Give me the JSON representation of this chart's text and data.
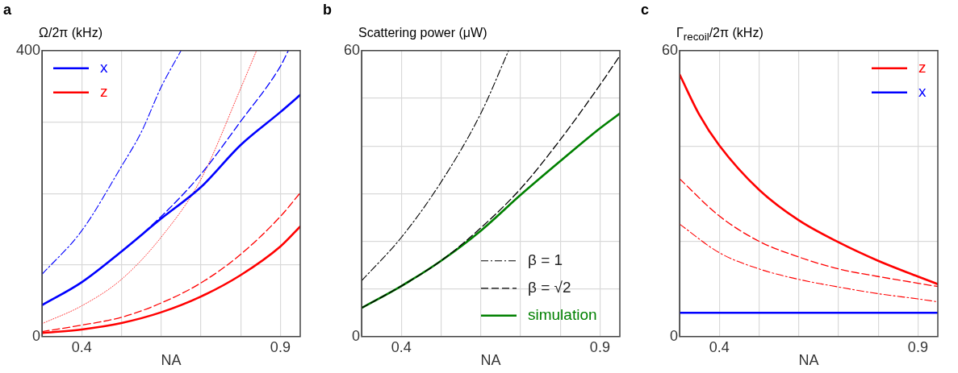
{
  "chart_data": [
    {
      "type": "line",
      "title": "a",
      "ylabel": "Ω/2π (kHz)",
      "xlabel": "NA",
      "xlim": [
        0.3,
        0.95
      ],
      "ylim": [
        0,
        400
      ],
      "xticks": [
        {
          "value": 0.4,
          "label": "0.4"
        },
        {
          "value": 0.5,
          "label": null
        },
        {
          "value": 0.6,
          "label": null
        },
        {
          "value": 0.7,
          "label": null
        },
        {
          "value": 0.8,
          "label": null
        },
        {
          "value": 0.9,
          "label": "0.9"
        }
      ],
      "yticks": [
        0,
        {
          "value": 100,
          "label": null
        },
        {
          "value": 200,
          "label": null
        },
        {
          "value": 300,
          "label": null
        },
        400
      ],
      "grid": true,
      "legend": "top left",
      "series": [
        {
          "name": "x",
          "color": "#0000ff",
          "line_style": "solid",
          "x": [
            0.3,
            0.4,
            0.5,
            0.6,
            0.7,
            0.8,
            0.9,
            0.95
          ],
          "values": [
            44,
            76,
            119,
            165,
            209,
            268,
            314,
            338
          ]
        },
        {
          "name": "z",
          "color": "#ff0000",
          "line_style": "solid",
          "x": [
            0.3,
            0.4,
            0.5,
            0.6,
            0.7,
            0.8,
            0.9,
            0.95
          ],
          "values": [
            5,
            10,
            19,
            34,
            56,
            86,
            126,
            154
          ]
        },
        {
          "color": "#0000ff",
          "line_style": "dashed",
          "x": [
            0.3,
            0.4,
            0.5,
            0.6,
            0.7,
            0.8,
            0.9,
            0.92
          ],
          "values": [
            44,
            76,
            119,
            168,
            227,
            301,
            378,
            400
          ]
        },
        {
          "color": "#0000ff",
          "line_style": "dashdot",
          "x": [
            0.3,
            0.4,
            0.5,
            0.55,
            0.6,
            0.65
          ],
          "values": [
            87,
            148,
            238,
            286,
            349,
            400
          ]
        },
        {
          "color": "#ff0000",
          "line_style": "dashed",
          "x": [
            0.3,
            0.4,
            0.5,
            0.6,
            0.7,
            0.8,
            0.9,
            0.95
          ],
          "values": [
            7,
            16,
            27,
            47,
            75,
            115,
            168,
            201
          ]
        },
        {
          "color": "#ff0000",
          "line_style": "dotted",
          "x": [
            0.3,
            0.4,
            0.5,
            0.6,
            0.7,
            0.8,
            0.84
          ],
          "values": [
            18,
            43,
            80,
            139,
            220,
            347,
            400
          ]
        }
      ]
    },
    {
      "type": "line",
      "title": "b",
      "ylabel": "Scattering power (μW)",
      "xlabel": "NA",
      "xlim": [
        0.3,
        0.95
      ],
      "ylim": [
        0,
        60
      ],
      "xticks": [
        {
          "value": 0.4,
          "label": "0.4"
        },
        {
          "value": 0.5,
          "label": null
        },
        {
          "value": 0.6,
          "label": null
        },
        {
          "value": 0.7,
          "label": null
        },
        {
          "value": 0.8,
          "label": null
        },
        {
          "value": 0.9,
          "label": "0.9"
        }
      ],
      "yticks": [
        0,
        {
          "value": 10,
          "label": null
        },
        {
          "value": 20,
          "label": null
        },
        {
          "value": 30,
          "label": null
        },
        {
          "value": 40,
          "label": null
        },
        {
          "value": 50,
          "label": null
        },
        60
      ],
      "grid": true,
      "legend": "bottom right",
      "series": [
        {
          "name": "β = 1",
          "color": "#000000",
          "line_style": "dashdot",
          "x": [
            0.3,
            0.4,
            0.5,
            0.6,
            0.67
          ],
          "values": [
            11.7,
            20.8,
            32.4,
            46.8,
            60
          ]
        },
        {
          "name": "β = √2",
          "color": "#000000",
          "line_style": "dashed",
          "x": [
            0.3,
            0.4,
            0.5,
            0.6,
            0.7,
            0.8,
            0.9,
            0.95
          ],
          "values": [
            6.0,
            10.6,
            15.9,
            22.8,
            31.0,
            41.3,
            52.8,
            58.9
          ]
        },
        {
          "name": "simulation",
          "color": "#008000",
          "line_style": "solid",
          "x": [
            0.3,
            0.4,
            0.5,
            0.6,
            0.7,
            0.8,
            0.9,
            0.95
          ],
          "values": [
            6.0,
            10.6,
            15.9,
            22.2,
            29.7,
            36.8,
            43.7,
            46.8
          ]
        }
      ]
    },
    {
      "type": "line",
      "title": "c",
      "ylabel": "Γ$_{recoil}$/2π (kHz)",
      "xlabel": "NA",
      "xlim": [
        0.3,
        0.95
      ],
      "ylim": [
        0,
        60
      ],
      "xticks": [
        {
          "value": 0.4,
          "label": "0.4"
        },
        {
          "value": 0.5,
          "label": null
        },
        {
          "value": 0.6,
          "label": null
        },
        {
          "value": 0.7,
          "label": null
        },
        {
          "value": 0.8,
          "label": null
        },
        {
          "value": 0.9,
          "label": "0.9"
        }
      ],
      "yticks": [
        0,
        {
          "value": 20,
          "label": null
        },
        {
          "value": 40,
          "label": null
        },
        60
      ],
      "grid": true,
      "legend": "top right",
      "series": [
        {
          "name": "z",
          "color": "#ff0000",
          "line_style": "solid",
          "x": [
            0.3,
            0.35,
            0.4,
            0.5,
            0.6,
            0.7,
            0.8,
            0.9,
            0.95
          ],
          "values": [
            55.0,
            46.5,
            40.1,
            30.8,
            24.4,
            19.8,
            15.9,
            12.6,
            11.0
          ]
        },
        {
          "name": "x",
          "color": "#0000ff",
          "line_style": "solid",
          "x": [
            0.3,
            0.95
          ],
          "values": [
            5.0,
            5.0
          ]
        },
        {
          "color": "#ff0000",
          "line_style": "dashed",
          "x": [
            0.3,
            0.4,
            0.5,
            0.6,
            0.7,
            0.8,
            0.9,
            0.95
          ],
          "values": [
            33.1,
            25.3,
            20.0,
            16.7,
            14.2,
            12.6,
            11.2,
            10.5
          ]
        },
        {
          "color": "#ff0000",
          "line_style": "dashdot",
          "x": [
            0.3,
            0.4,
            0.5,
            0.6,
            0.7,
            0.8,
            0.9,
            0.95
          ],
          "values": [
            23.6,
            17.6,
            14.2,
            12.0,
            10.4,
            9.0,
            7.9,
            7.3
          ]
        }
      ]
    }
  ]
}
